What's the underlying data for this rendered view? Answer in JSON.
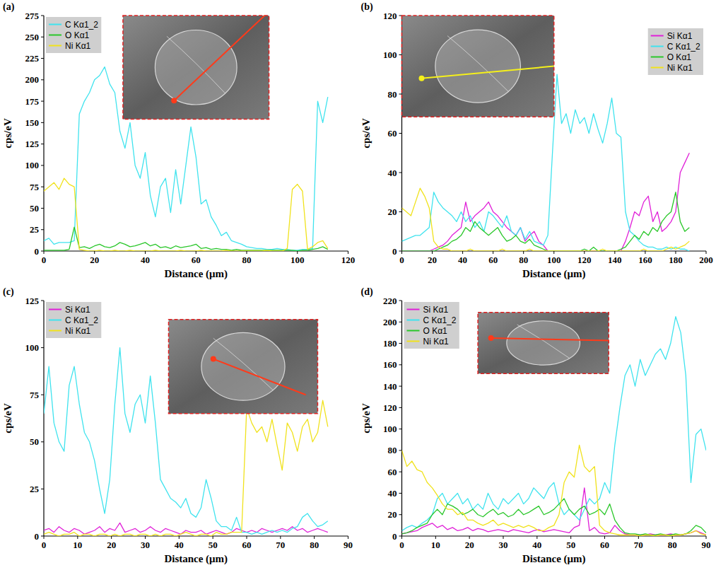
{
  "chart_data": [
    {
      "type": "line",
      "title": "(a)",
      "x_label": "Distance (μm)",
      "y_label": "cps/eV",
      "legend": "top-left",
      "xlim": [
        0,
        120
      ],
      "xticks": [
        0,
        20,
        40,
        60,
        80,
        100,
        120
      ],
      "ylim": [
        0,
        275
      ],
      "yticks": [
        0,
        25,
        50,
        75,
        100,
        125,
        150,
        175,
        200,
        225,
        250,
        275
      ],
      "x": [
        0,
        2,
        4,
        6,
        8,
        10,
        12,
        14,
        16,
        18,
        20,
        22,
        24,
        26,
        28,
        30,
        32,
        34,
        36,
        38,
        40,
        42,
        44,
        46,
        48,
        50,
        52,
        54,
        56,
        58,
        60,
        62,
        64,
        66,
        68,
        70,
        72,
        74,
        76,
        78,
        80,
        82,
        84,
        86,
        88,
        90,
        92,
        94,
        96,
        98,
        100,
        102,
        104,
        106,
        108,
        110,
        112
      ],
      "series": [
        {
          "name": "C Kα1_2",
          "color": "#3fe3ee",
          "values": [
            12,
            15,
            8,
            10,
            10,
            10,
            12,
            160,
            175,
            185,
            200,
            205,
            215,
            195,
            185,
            140,
            120,
            150,
            100,
            85,
            115,
            65,
            40,
            75,
            85,
            45,
            95,
            55,
            100,
            145,
            110,
            55,
            60,
            40,
            30,
            18,
            22,
            12,
            10,
            8,
            5,
            4,
            3,
            3,
            2,
            2,
            3,
            2,
            2,
            1,
            1,
            2,
            2,
            3,
            175,
            150,
            180
          ]
        },
        {
          "name": "O Kα1",
          "color": "#2ac72a",
          "values": [
            1,
            1,
            1,
            1,
            1,
            2,
            28,
            4,
            5,
            3,
            6,
            8,
            5,
            4,
            6,
            10,
            8,
            5,
            6,
            8,
            10,
            6,
            8,
            4,
            5,
            3,
            6,
            4,
            5,
            6,
            8,
            3,
            4,
            2,
            3,
            2,
            2,
            1,
            2,
            1,
            1,
            1,
            1,
            1,
            1,
            1,
            1,
            1,
            1,
            1,
            0,
            1,
            1,
            2,
            3,
            5,
            2
          ]
        },
        {
          "name": "Ni Kα1",
          "color": "#f0e21c",
          "values": [
            70,
            75,
            80,
            72,
            85,
            78,
            75,
            2,
            1,
            0,
            0,
            1,
            0,
            0,
            1,
            0,
            0,
            1,
            0,
            0,
            0,
            0,
            1,
            0,
            0,
            0,
            0,
            1,
            0,
            0,
            0,
            1,
            0,
            0,
            0,
            0,
            1,
            0,
            0,
            0,
            0,
            0,
            0,
            0,
            1,
            0,
            0,
            0,
            3,
            72,
            78,
            70,
            2,
            5,
            10,
            12,
            3
          ]
        }
      ]
    },
    {
      "type": "line",
      "title": "(b)",
      "x_label": "Distance (μm)",
      "y_label": "cps/eV",
      "legend": "top-right",
      "xlim": [
        0,
        200
      ],
      "xticks": [
        0,
        20,
        40,
        60,
        80,
        100,
        120,
        140,
        160,
        180,
        200
      ],
      "ylim": [
        0,
        120
      ],
      "yticks": [
        0,
        20,
        40,
        60,
        80,
        100,
        120
      ],
      "x": [
        0,
        3,
        6,
        9,
        12,
        15,
        18,
        21,
        24,
        27,
        30,
        33,
        36,
        39,
        42,
        45,
        48,
        51,
        54,
        57,
        60,
        63,
        66,
        69,
        72,
        75,
        78,
        81,
        84,
        87,
        90,
        93,
        96,
        99,
        102,
        105,
        108,
        111,
        114,
        117,
        120,
        123,
        126,
        129,
        132,
        135,
        138,
        141,
        144,
        147,
        150,
        153,
        156,
        159,
        162,
        165,
        168,
        171,
        174,
        177,
        180,
        183,
        186,
        189
      ],
      "series": [
        {
          "name": "Si Kα1",
          "color": "#e020d8",
          "values": [
            0,
            0,
            0,
            0,
            0,
            0,
            0,
            1,
            2,
            3,
            5,
            8,
            10,
            12,
            25,
            15,
            18,
            20,
            22,
            25,
            20,
            18,
            15,
            12,
            10,
            8,
            12,
            5,
            8,
            10,
            5,
            3,
            0,
            0,
            0,
            0,
            0,
            0,
            0,
            0,
            0,
            0,
            0,
            0,
            0,
            0,
            0,
            0,
            0,
            5,
            12,
            20,
            18,
            25,
            28,
            15,
            20,
            10,
            12,
            15,
            20,
            40,
            45,
            50
          ]
        },
        {
          "name": "C Kα1_2",
          "color": "#3fe3ee",
          "values": [
            5,
            6,
            7,
            8,
            8,
            10,
            12,
            30,
            25,
            22,
            20,
            18,
            15,
            20,
            15,
            18,
            12,
            15,
            10,
            20,
            18,
            15,
            12,
            18,
            10,
            8,
            12,
            6,
            10,
            5,
            4,
            3,
            8,
            50,
            90,
            65,
            70,
            60,
            72,
            65,
            68,
            60,
            70,
            62,
            55,
            65,
            78,
            60,
            58,
            20,
            10,
            8,
            5,
            3,
            2,
            2,
            1,
            1,
            2,
            1,
            2,
            1,
            1,
            0
          ]
        },
        {
          "name": "O Kα1",
          "color": "#2ac72a",
          "values": [
            0,
            0,
            0,
            0,
            0,
            0,
            0,
            0,
            1,
            2,
            3,
            5,
            6,
            8,
            12,
            10,
            15,
            12,
            10,
            8,
            10,
            12,
            8,
            5,
            6,
            8,
            5,
            4,
            6,
            3,
            2,
            1,
            0,
            0,
            0,
            0,
            0,
            0,
            0,
            0,
            1,
            0,
            2,
            0,
            0,
            0,
            0,
            0,
            1,
            2,
            5,
            8,
            6,
            10,
            8,
            12,
            10,
            15,
            18,
            20,
            30,
            15,
            10,
            12
          ]
        },
        {
          "name": "Ni Kα1",
          "color": "#f0e21c",
          "values": [
            22,
            20,
            18,
            25,
            32,
            28,
            22,
            5,
            2,
            1,
            1,
            0,
            0,
            0,
            0,
            1,
            0,
            0,
            0,
            0,
            0,
            0,
            1,
            0,
            0,
            0,
            0,
            0,
            1,
            0,
            0,
            0,
            0,
            0,
            0,
            0,
            0,
            0,
            0,
            0,
            0,
            0,
            0,
            0,
            1,
            0,
            0,
            0,
            0,
            0,
            0,
            0,
            0,
            1,
            0,
            0,
            0,
            0,
            1,
            2,
            1,
            2,
            3,
            5
          ]
        }
      ]
    },
    {
      "type": "line",
      "title": "(c)",
      "x_label": "Distance (μm)",
      "y_label": "cps/eV",
      "legend": "top-left",
      "xlim": [
        0,
        90
      ],
      "xticks": [
        0,
        10,
        20,
        30,
        40,
        50,
        60,
        70,
        80,
        90
      ],
      "ylim": [
        0,
        125
      ],
      "yticks": [
        0,
        25,
        50,
        75,
        100,
        125
      ],
      "x": [
        0,
        1.5,
        3,
        4.5,
        6,
        7.5,
        9,
        10.5,
        12,
        13.5,
        15,
        16.5,
        18,
        19.5,
        21,
        22.5,
        24,
        25.5,
        27,
        28.5,
        30,
        31.5,
        33,
        34.5,
        36,
        37.5,
        39,
        40.5,
        42,
        43.5,
        45,
        46.5,
        48,
        49.5,
        51,
        52.5,
        54,
        55.5,
        57,
        58.5,
        60,
        61.5,
        63,
        64.5,
        66,
        67.5,
        69,
        70.5,
        72,
        73.5,
        75,
        76.5,
        78,
        79.5,
        81,
        82.5,
        84
      ],
      "series": [
        {
          "name": "Si Kα1",
          "color": "#e020d8",
          "values": [
            3,
            4,
            2,
            5,
            3,
            2,
            4,
            3,
            1,
            2,
            3,
            5,
            2,
            4,
            3,
            7,
            2,
            3,
            4,
            2,
            3,
            5,
            3,
            2,
            4,
            3,
            2,
            1,
            3,
            2,
            2,
            3,
            1,
            2,
            3,
            2,
            1,
            2,
            4,
            3,
            2,
            3,
            2,
            4,
            3,
            2,
            3,
            4,
            3,
            5,
            3,
            4,
            2,
            3,
            4,
            3,
            2
          ]
        },
        {
          "name": "C Kα1_2",
          "color": "#3fe3ee",
          "values": [
            65,
            90,
            60,
            50,
            45,
            80,
            90,
            70,
            55,
            50,
            40,
            25,
            12,
            30,
            70,
            100,
            65,
            55,
            70,
            75,
            60,
            85,
            60,
            30,
            25,
            20,
            18,
            15,
            20,
            12,
            10,
            15,
            30,
            20,
            8,
            5,
            5,
            3,
            10,
            2,
            2,
            1,
            2,
            1,
            2,
            3,
            2,
            3,
            2,
            4,
            5,
            10,
            12,
            8,
            5,
            6,
            8
          ]
        },
        {
          "name": "Ni Kα1",
          "color": "#f0e21c",
          "values": [
            1,
            2,
            1,
            0,
            1,
            1,
            2,
            0,
            1,
            1,
            0,
            1,
            1,
            0,
            1,
            0,
            1,
            1,
            0,
            1,
            1,
            0,
            1,
            0,
            1,
            1,
            0,
            1,
            2,
            1,
            0,
            1,
            1,
            0,
            2,
            1,
            1,
            2,
            2,
            2,
            68,
            60,
            55,
            58,
            50,
            62,
            48,
            35,
            60,
            55,
            45,
            58,
            62,
            50,
            55,
            72,
            58
          ]
        }
      ]
    },
    {
      "type": "line",
      "title": "(d)",
      "x_label": "Distance (μm)",
      "y_label": "cps/eV",
      "legend": "top-left",
      "xlim": [
        0,
        90
      ],
      "xticks": [
        0,
        10,
        20,
        30,
        40,
        50,
        60,
        70,
        80,
        90
      ],
      "ylim": [
        0,
        220
      ],
      "yticks": [
        0,
        20,
        40,
        60,
        80,
        100,
        120,
        140,
        160,
        180,
        200,
        220
      ],
      "x": [
        0,
        1.5,
        3,
        4.5,
        6,
        7.5,
        9,
        10.5,
        12,
        13.5,
        15,
        16.5,
        18,
        19.5,
        21,
        22.5,
        24,
        25.5,
        27,
        28.5,
        30,
        31.5,
        33,
        34.5,
        36,
        37.5,
        39,
        40.5,
        42,
        43.5,
        45,
        46.5,
        48,
        49.5,
        51,
        52.5,
        54,
        55.5,
        57,
        58.5,
        60,
        61.5,
        63,
        64.5,
        66,
        67.5,
        69,
        70.5,
        72,
        73.5,
        75,
        76.5,
        78,
        79.5,
        81,
        82.5,
        84,
        85.5,
        87,
        88.5,
        90
      ],
      "series": [
        {
          "name": "Si Kα1",
          "color": "#e020d8",
          "values": [
            2,
            3,
            4,
            5,
            8,
            10,
            12,
            8,
            10,
            6,
            8,
            5,
            6,
            8,
            5,
            7,
            6,
            4,
            5,
            6,
            5,
            4,
            6,
            5,
            4,
            3,
            5,
            6,
            4,
            5,
            6,
            5,
            4,
            3,
            8,
            10,
            45,
            5,
            8,
            3,
            2,
            3,
            10,
            5,
            2,
            1,
            1,
            1,
            1,
            2,
            1,
            1,
            1,
            2,
            1,
            1,
            2,
            3,
            5,
            3,
            1
          ]
        },
        {
          "name": "C Kα1_2",
          "color": "#3fe3ee",
          "values": [
            5,
            8,
            10,
            8,
            12,
            15,
            20,
            35,
            40,
            30,
            35,
            40,
            30,
            35,
            25,
            30,
            25,
            40,
            30,
            25,
            35,
            30,
            35,
            40,
            30,
            35,
            45,
            40,
            35,
            45,
            50,
            30,
            20,
            25,
            20,
            15,
            25,
            35,
            30,
            35,
            50,
            40,
            85,
            120,
            150,
            160,
            140,
            165,
            150,
            160,
            170,
            175,
            165,
            180,
            205,
            190,
            150,
            50,
            95,
            100,
            80
          ]
        },
        {
          "name": "O Kα1",
          "color": "#2ac72a",
          "values": [
            2,
            3,
            5,
            8,
            10,
            12,
            20,
            25,
            20,
            30,
            28,
            25,
            20,
            22,
            25,
            20,
            18,
            22,
            25,
            20,
            22,
            18,
            20,
            25,
            20,
            22,
            25,
            28,
            20,
            22,
            25,
            30,
            35,
            25,
            20,
            25,
            28,
            20,
            22,
            25,
            20,
            30,
            15,
            8,
            3,
            2,
            2,
            1,
            2,
            1,
            1,
            2,
            1,
            1,
            2,
            1,
            2,
            5,
            10,
            8,
            3
          ]
        },
        {
          "name": "Ni Kα1",
          "color": "#f0e21c",
          "values": [
            80,
            65,
            70,
            62,
            60,
            50,
            45,
            38,
            30,
            25,
            25,
            20,
            22,
            15,
            15,
            12,
            10,
            12,
            15,
            10,
            12,
            10,
            8,
            10,
            8,
            10,
            8,
            5,
            5,
            8,
            10,
            20,
            50,
            60,
            55,
            85,
            65,
            60,
            65,
            10,
            5,
            3,
            2,
            1,
            1,
            1,
            1,
            0,
            1,
            1,
            0,
            1,
            1,
            0,
            1,
            1,
            2,
            3,
            5,
            2,
            1
          ]
        }
      ]
    }
  ]
}
